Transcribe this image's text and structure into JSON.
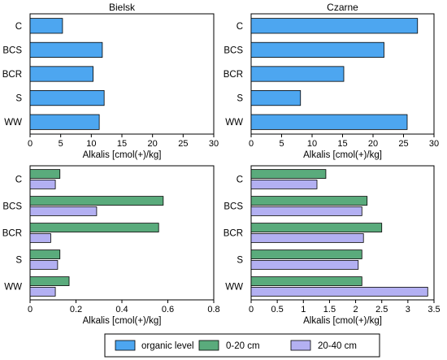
{
  "colors": {
    "organic": "#4da6f0",
    "cm0_20": "#5aab7c",
    "cm20_40": "#b3b0f2",
    "stroke": "#000000"
  },
  "legend": {
    "organic": "organic level",
    "cm0_20": "0-20 cm",
    "cm20_40": "20-40 cm"
  },
  "chart_data": [
    {
      "type": "bar",
      "orientation": "horizontal",
      "title": "Bielsk",
      "xlabel": "Alkalis [cmol(+)/kg]",
      "categories": [
        "C",
        "BCS",
        "BCR",
        "S",
        "WW"
      ],
      "xlim": [
        0,
        30
      ],
      "xticks": [
        "0",
        "5",
        "10",
        "15",
        "20",
        "25",
        "30"
      ],
      "series": [
        {
          "key": "organic",
          "values": [
            5.3,
            11.8,
            10.3,
            12.1,
            11.3
          ]
        }
      ]
    },
    {
      "type": "bar",
      "orientation": "horizontal",
      "title": "Czarne",
      "xlabel": "Alkalis [cmol(+)/kg]",
      "categories": [
        "C",
        "BCS",
        "BCR",
        "S",
        "WW"
      ],
      "xlim": [
        0,
        30
      ],
      "xticks": [
        "0",
        "5",
        "10",
        "15",
        "20",
        "25",
        "30"
      ],
      "series": [
        {
          "key": "organic",
          "values": [
            27.3,
            21.8,
            15.2,
            8.1,
            25.6
          ]
        }
      ]
    },
    {
      "type": "bar",
      "orientation": "horizontal",
      "title": "",
      "xlabel": "Alkalis [cmol(+)/kg]",
      "categories": [
        "C",
        "BCS",
        "BCR",
        "S",
        "WW"
      ],
      "xlim": [
        0,
        0.8
      ],
      "xticks": [
        "0",
        "0.2",
        "0.4",
        "0.6",
        "0.8"
      ],
      "series": [
        {
          "key": "cm0_20",
          "values": [
            0.13,
            0.58,
            0.56,
            0.13,
            0.17
          ]
        },
        {
          "key": "cm20_40",
          "values": [
            0.11,
            0.29,
            0.09,
            0.12,
            0.11
          ]
        }
      ]
    },
    {
      "type": "bar",
      "orientation": "horizontal",
      "title": "",
      "xlabel": "Alkalis [cmol(+)/kg]",
      "categories": [
        "C",
        "BCS",
        "BCR",
        "S",
        "WW"
      ],
      "xlim": [
        0,
        3.5
      ],
      "xticks": [
        "0",
        "0.5",
        "1",
        "1.5",
        "2",
        "2.5",
        "3",
        "3.5"
      ],
      "series": [
        {
          "key": "cm0_20",
          "values": [
            1.43,
            2.22,
            2.5,
            2.12,
            2.12
          ]
        },
        {
          "key": "cm20_40",
          "values": [
            1.26,
            2.12,
            2.15,
            2.05,
            3.38
          ]
        }
      ]
    }
  ]
}
